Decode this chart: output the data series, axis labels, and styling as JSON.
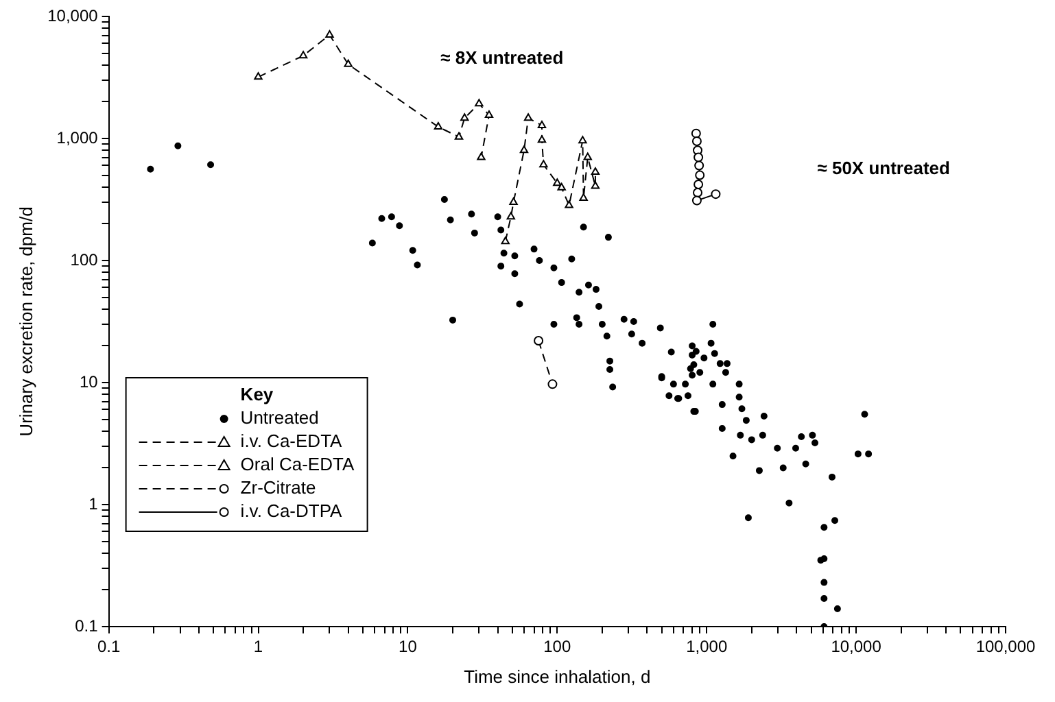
{
  "chart_data": {
    "type": "scatter",
    "xlabel": "Time since inhalation, d",
    "ylabel": "Urinary excretion rate, dpm/d",
    "legend_title": "Key",
    "legend": "bottom left",
    "grid": false,
    "log": "xy",
    "xlim": [
      0.1,
      100000
    ],
    "ylim": [
      0.1,
      10000
    ],
    "xticks": [
      0.1,
      {
        "value": 0.2,
        "label": null
      },
      {
        "value": 0.3,
        "label": null
      },
      {
        "value": 0.4,
        "label": null
      },
      {
        "value": 0.5,
        "label": null
      },
      {
        "value": 0.6,
        "label": null
      },
      {
        "value": 0.7,
        "label": null
      },
      {
        "value": 0.8,
        "label": null
      },
      {
        "value": 0.9,
        "label": null
      },
      1,
      {
        "value": 2,
        "label": null
      },
      {
        "value": 3,
        "label": null
      },
      {
        "value": 4,
        "label": null
      },
      {
        "value": 5,
        "label": null
      },
      {
        "value": 6,
        "label": null
      },
      {
        "value": 7,
        "label": null
      },
      {
        "value": 8,
        "label": null
      },
      {
        "value": 9,
        "label": null
      },
      10,
      {
        "value": 20,
        "label": null
      },
      {
        "value": 30,
        "label": null
      },
      {
        "value": 40,
        "label": null
      },
      {
        "value": 50,
        "label": null
      },
      {
        "value": 60,
        "label": null
      },
      {
        "value": 70,
        "label": null
      },
      {
        "value": 80,
        "label": null
      },
      {
        "value": 90,
        "label": null
      },
      100,
      {
        "value": 200,
        "label": null
      },
      {
        "value": 300,
        "label": null
      },
      {
        "value": 400,
        "label": null
      },
      {
        "value": 500,
        "label": null
      },
      {
        "value": 600,
        "label": null
      },
      {
        "value": 700,
        "label": null
      },
      {
        "value": 800,
        "label": null
      },
      {
        "value": 900,
        "label": null
      },
      {
        "value": 1000,
        "label": "1,000"
      },
      {
        "value": 2000,
        "label": null
      },
      {
        "value": 3000,
        "label": null
      },
      {
        "value": 4000,
        "label": null
      },
      {
        "value": 5000,
        "label": null
      },
      {
        "value": 6000,
        "label": null
      },
      {
        "value": 7000,
        "label": null
      },
      {
        "value": 8000,
        "label": null
      },
      {
        "value": 9000,
        "label": null
      },
      {
        "value": 10000,
        "label": "10,000"
      },
      {
        "value": 20000,
        "label": null
      },
      {
        "value": 30000,
        "label": null
      },
      {
        "value": 40000,
        "label": null
      },
      {
        "value": 50000,
        "label": null
      },
      {
        "value": 60000,
        "label": null
      },
      {
        "value": 70000,
        "label": null
      },
      {
        "value": 80000,
        "label": null
      },
      {
        "value": 90000,
        "label": null
      },
      {
        "value": 100000,
        "label": "100,000"
      }
    ],
    "yticks": [
      0.1,
      {
        "value": 0.2,
        "label": null
      },
      {
        "value": 0.3,
        "label": null
      },
      {
        "value": 0.4,
        "label": null
      },
      {
        "value": 0.5,
        "label": null
      },
      {
        "value": 0.6,
        "label": null
      },
      {
        "value": 0.7,
        "label": null
      },
      {
        "value": 0.8,
        "label": null
      },
      {
        "value": 0.9,
        "label": null
      },
      1,
      {
        "value": 2,
        "label": null
      },
      {
        "value": 3,
        "label": null
      },
      {
        "value": 4,
        "label": null
      },
      {
        "value": 5,
        "label": null
      },
      {
        "value": 6,
        "label": null
      },
      {
        "value": 7,
        "label": null
      },
      {
        "value": 8,
        "label": null
      },
      {
        "value": 9,
        "label": null
      },
      10,
      {
        "value": 20,
        "label": null
      },
      {
        "value": 30,
        "label": null
      },
      {
        "value": 40,
        "label": null
      },
      {
        "value": 50,
        "label": null
      },
      {
        "value": 60,
        "label": null
      },
      {
        "value": 70,
        "label": null
      },
      {
        "value": 80,
        "label": null
      },
      {
        "value": 90,
        "label": null
      },
      100,
      {
        "value": 200,
        "label": null
      },
      {
        "value": 300,
        "label": null
      },
      {
        "value": 400,
        "label": null
      },
      {
        "value": 500,
        "label": null
      },
      {
        "value": 600,
        "label": null
      },
      {
        "value": 700,
        "label": null
      },
      {
        "value": 800,
        "label": null
      },
      {
        "value": 900,
        "label": null
      },
      {
        "value": 1000,
        "label": "1,000"
      },
      {
        "value": 2000,
        "label": null
      },
      {
        "value": 3000,
        "label": null
      },
      {
        "value": 4000,
        "label": null
      },
      {
        "value": 5000,
        "label": null
      },
      {
        "value": 6000,
        "label": null
      },
      {
        "value": 7000,
        "label": null
      },
      {
        "value": 8000,
        "label": null
      },
      {
        "value": 9000,
        "label": null
      },
      {
        "value": 10000,
        "label": "10,000"
      }
    ],
    "annotations": [
      "≈ 8X untreated",
      "≈ 50X untreated"
    ],
    "series": [
      {
        "name": "Untreated",
        "type": "scatter",
        "marker": "circle",
        "color": "#000000",
        "x": [
          0.19,
          0.29,
          0.48,
          6.7,
          7.8,
          8.8,
          5.8,
          10.8,
          11.6,
          17.6,
          19.3,
          26.7,
          28,
          20,
          40,
          42,
          44,
          42,
          52,
          52,
          56,
          150,
          220,
          70,
          76,
          95,
          107,
          125,
          140,
          162,
          182,
          190,
          200,
          215,
          135,
          140,
          95,
          280,
          325,
          315,
          370,
          490,
          225,
          225,
          235,
          580,
          500,
          600,
          650,
          820,
          500,
          560,
          640,
          720,
          800,
          800,
          840,
          750,
          900,
          960,
          1100,
          1070,
          1130,
          1100,
          1230,
          1370,
          1340,
          1270,
          1270,
          1500,
          1650,
          1650,
          1720,
          1840,
          1680,
          1900,
          2000,
          2420,
          2370,
          2250,
          2970,
          3250,
          3940,
          4300,
          5100,
          5300,
          4600,
          3560,
          6900,
          7200,
          6100,
          5800,
          6100,
          6100,
          6100,
          7500,
          6100,
          11400,
          10300,
          12100,
          800,
          820,
          780,
          850
        ],
        "values": [
          560,
          870,
          610,
          221,
          228,
          193,
          139,
          121,
          92,
          316,
          215,
          240,
          168,
          32.5,
          228,
          178,
          115,
          90,
          109,
          78,
          44,
          188,
          155,
          124,
          100,
          87,
          66,
          103,
          55,
          63,
          58,
          42,
          30,
          24,
          34,
          30,
          30,
          33,
          31.6,
          25,
          21,
          28,
          15,
          12.8,
          9.2,
          17.8,
          11.2,
          9.7,
          7.4,
          5.8,
          10.9,
          7.8,
          7.4,
          9.7,
          16.8,
          11.5,
          5.8,
          7.8,
          12.1,
          15.9,
          30,
          21,
          17.3,
          9.7,
          14.3,
          14.3,
          12.1,
          6.6,
          4.2,
          2.5,
          9.7,
          7.6,
          6.1,
          4.9,
          3.7,
          0.78,
          3.4,
          5.3,
          3.7,
          1.9,
          2.9,
          2,
          2.9,
          3.6,
          3.7,
          3.2,
          2.15,
          1.03,
          1.68,
          0.74,
          0.65,
          0.35,
          0.36,
          0.23,
          0.17,
          0.14,
          0.1,
          5.5,
          2.6,
          2.6,
          20,
          14,
          13,
          18
        ]
      },
      {
        "name": "i.v. Ca-EDTA",
        "type": "line",
        "marker": "triangle",
        "line_style": "dashed",
        "color": "#000000",
        "x": [
          1,
          2,
          3,
          4,
          16,
          22,
          24,
          30,
          35,
          31
        ],
        "values": [
          3190,
          4770,
          7060,
          4050,
          1245,
          1030,
          1470,
          1930,
          1550,
          700
        ]
      },
      {
        "name": "Oral Ca-EDTA",
        "type": "line",
        "marker": "triangle",
        "line_style": "dashed",
        "color": "#000000",
        "x": [
          45,
          49,
          51,
          60,
          64,
          79,
          79,
          81,
          100,
          107,
          120,
          148,
          150,
          160,
          180,
          180
        ],
        "values": [
          143,
          228,
          300,
          800,
          1470,
          1280,
          970,
          610,
          430,
          395,
          283,
          960,
          325,
          700,
          407,
          530
        ]
      },
      {
        "name": "Zr-Citrate",
        "type": "line",
        "marker": "circle",
        "line_style": "dashed",
        "color": "#000000",
        "x": [
          75,
          93
        ],
        "values": [
          22,
          9.7
        ]
      },
      {
        "name": "i.v. Ca-DTPA",
        "type": "line",
        "marker": "circle",
        "line_style": "solid",
        "color": "#000000",
        "x": [
          850,
          860,
          870,
          880,
          890,
          900,
          880,
          870,
          860,
          1150
        ],
        "values": [
          1100,
          950,
          800,
          700,
          600,
          500,
          420,
          360,
          310,
          350
        ]
      }
    ]
  }
}
